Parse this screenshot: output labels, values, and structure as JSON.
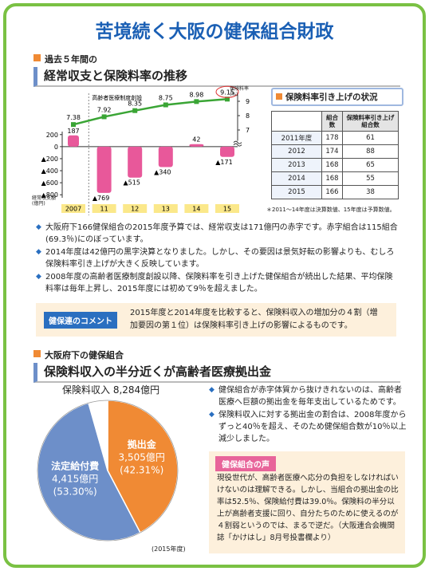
{
  "title": "苦境続く大阪の健保組合財政",
  "section1": {
    "kicker": "過去５年間の",
    "heading": "経常収支と保険料率の推移"
  },
  "chart_data": [
    {
      "type": "bar",
      "annotation": "高齢者医療制度創設",
      "ylabel": "経常収支額(億円)",
      "y2label": "保険料率(%)",
      "categories": [
        "2007",
        "11",
        "12",
        "13",
        "14",
        "15"
      ],
      "series": [
        {
          "values": [
            187,
            -769,
            -515,
            -340,
            42,
            -171
          ],
          "value_labels": [
            "187",
            "▲769",
            "▲515",
            "▲340",
            "42",
            "▲171"
          ],
          "color": "#e8589a"
        },
        {
          "type": "line",
          "axis": "y2",
          "values": [
            7.38,
            7.92,
            8.35,
            8.75,
            8.98,
            9.15
          ],
          "color": "#3aa535"
        }
      ],
      "ylim": [
        -850,
        250
      ],
      "yticks": [
        200,
        0,
        {
          "value": -200,
          "label": "▲200"
        },
        {
          "value": -400,
          "label": "▲400"
        },
        {
          "value": -600,
          "label": "▲600"
        },
        {
          "value": -800,
          "label": "▲800"
        }
      ],
      "y2lim": [
        6.8,
        9.5
      ],
      "y2ticks": [
        7,
        8,
        9
      ]
    },
    {
      "type": "pie",
      "title": "保険料収入 8,284億円",
      "categories": [
        "拠出金",
        "法定給付費",
        null
      ],
      "values": [
        3505,
        4415,
        364
      ],
      "value_labels": [
        "3,505億円",
        "4,415億円",
        null
      ],
      "percent_labels": [
        "(42.31%)",
        "(53.30%)",
        null
      ],
      "colors": [
        "#f08a34",
        "#6d8fc9",
        "#ffffff"
      ],
      "note": "(2015年度)"
    }
  ],
  "table": {
    "title": "保険料率引き上げの状況",
    "header": [
      "組合数",
      "保険料率引き上げ組合数"
    ],
    "rows": [
      [
        "2011年度",
        "178",
        "61"
      ],
      [
        "2012",
        "174",
        "88"
      ],
      [
        "2013",
        "168",
        "65"
      ],
      [
        "2014",
        "168",
        "55"
      ],
      [
        "2015",
        "166",
        "38"
      ]
    ],
    "note": "＊2011～14年度は決算数値、15年度は予算数値。"
  },
  "bullets1": [
    "大阪府下166健保組合の2015年度予算では、経常収支は171億円の赤字です。赤字組合は115組合(69.3％)にのぼっています。",
    "2014年度は42億円の黒字決算となりました。しかし、その要因は景気好転の影響よりも、むしろ保険料率引き上げが大きく反映しています。",
    "2008年度の高齢者医療制度創設以降、保険料率を引き上げた健保組合が続出した結果、平均保険料率は毎年上昇し、2015年度には初めて9％を超えました。"
  ],
  "comment": {
    "label": "健保連のコメント",
    "text": "2015年度と2014年度を比較すると、保険料収入の増加分の４割（増加要因の第１位）は保険料率引き上げの影響によるものです。"
  },
  "section2": {
    "kicker": "大阪府下の健保組合",
    "heading": "保険料収入の半分近くが高齢者医療拠出金"
  },
  "bullets2": [
    "健保組合が赤字体質から抜けきれないのは、高齢者医療へ巨額の拠出金を毎年支出しているためです。",
    "保険料収入に対する拠出金の割合は、2008年度からずっと40％を超え、そのため健保組合数が10％以上減少しました。"
  ],
  "voice": {
    "label": "健保組合の声",
    "text": "現役世代が、高齢者医療へ応分の負担をしなければいけないのは理解できる。しかし、当組合の拠出金の比率は52.5％、保険給付費は39.0％。保険料の半分以上が高齢者支援に回り、自分たちのために使えるのが４割弱というのでは、まるで逆だ。（大阪連合会機関誌「かけはし」8月号投書欄より）"
  }
}
